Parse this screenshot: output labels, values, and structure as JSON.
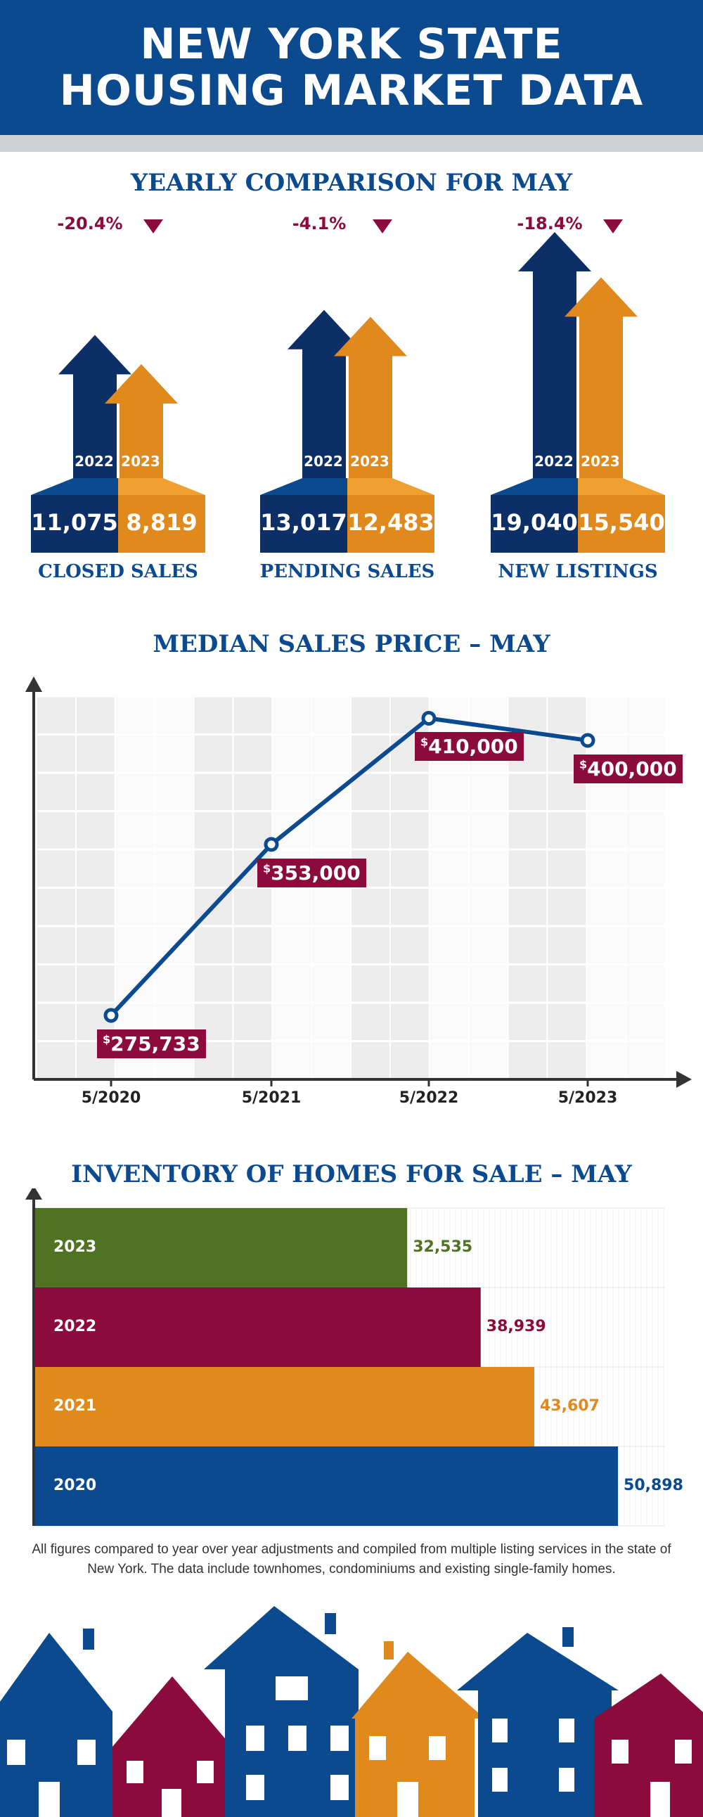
{
  "header": {
    "title_line1": "NEW YORK STATE",
    "title_line2": "HOUSING MARKET DATA"
  },
  "colors": {
    "navy": "#0b4a8f",
    "dark_navy": "#0c2f66",
    "orange": "#e08a1e",
    "maroon": "#8a0b3c",
    "green": "#4f7223",
    "grey": "#d2d3d5"
  },
  "yearly": {
    "title": "YEARLY COMPARISON FOR MAY",
    "year_a": "2022",
    "year_b": "2023",
    "items": [
      {
        "label": "CLOSED SALES",
        "change": "-20.4%",
        "v2022": "11,075",
        "v2023": "8,819"
      },
      {
        "label": "PENDING SALES",
        "change": "-4.1%",
        "v2022": "13,017",
        "v2023": "12,483"
      },
      {
        "label": "NEW LISTINGS",
        "change": "-18.4%",
        "v2022": "19,040",
        "v2023": "15,540"
      }
    ]
  },
  "median": {
    "title": "MEDIAN SALES PRICE – MAY",
    "currency_symbol": "$",
    "labels": [
      "275,733",
      "353,000",
      "410,000",
      "400,000"
    ]
  },
  "inventory": {
    "title": "INVENTORY OF HOMES FOR SALE – MAY",
    "value_labels": [
      "32,535",
      "38,939",
      "43,607",
      "50,898"
    ]
  },
  "footnote": "All figures compared to year over year adjustments and compiled from multiple listing services in the state of New York.  The data include townhomes, condominiums and existing single-family homes.",
  "chart_data": [
    {
      "type": "bar",
      "title": "YEARLY COMPARISON FOR MAY",
      "categories": [
        "CLOSED SALES",
        "PENDING SALES",
        "NEW LISTINGS"
      ],
      "series": [
        {
          "name": "2022",
          "values": [
            11075,
            13017,
            19040
          ]
        },
        {
          "name": "2023",
          "values": [
            8819,
            12483,
            15540
          ]
        }
      ],
      "annotations": [
        "-20.4%",
        "-4.1%",
        "-18.4%"
      ]
    },
    {
      "type": "line",
      "title": "MEDIAN SALES PRICE – MAY",
      "x": [
        "5/2020",
        "5/2021",
        "5/2022",
        "5/2023"
      ],
      "values": [
        275733,
        353000,
        410000,
        400000
      ],
      "ylim": [
        250000,
        420000
      ],
      "grid": true
    },
    {
      "type": "bar",
      "orientation": "horizontal",
      "title": "INVENTORY OF HOMES FOR SALE – MAY",
      "categories": [
        "2023",
        "2022",
        "2021",
        "2020"
      ],
      "values": [
        32535,
        38939,
        43607,
        50898
      ],
      "colors": [
        "#4f7223",
        "#8a0b3c",
        "#e08a1e",
        "#0b4a8f"
      ],
      "xlim": [
        0,
        55000
      ]
    }
  ]
}
